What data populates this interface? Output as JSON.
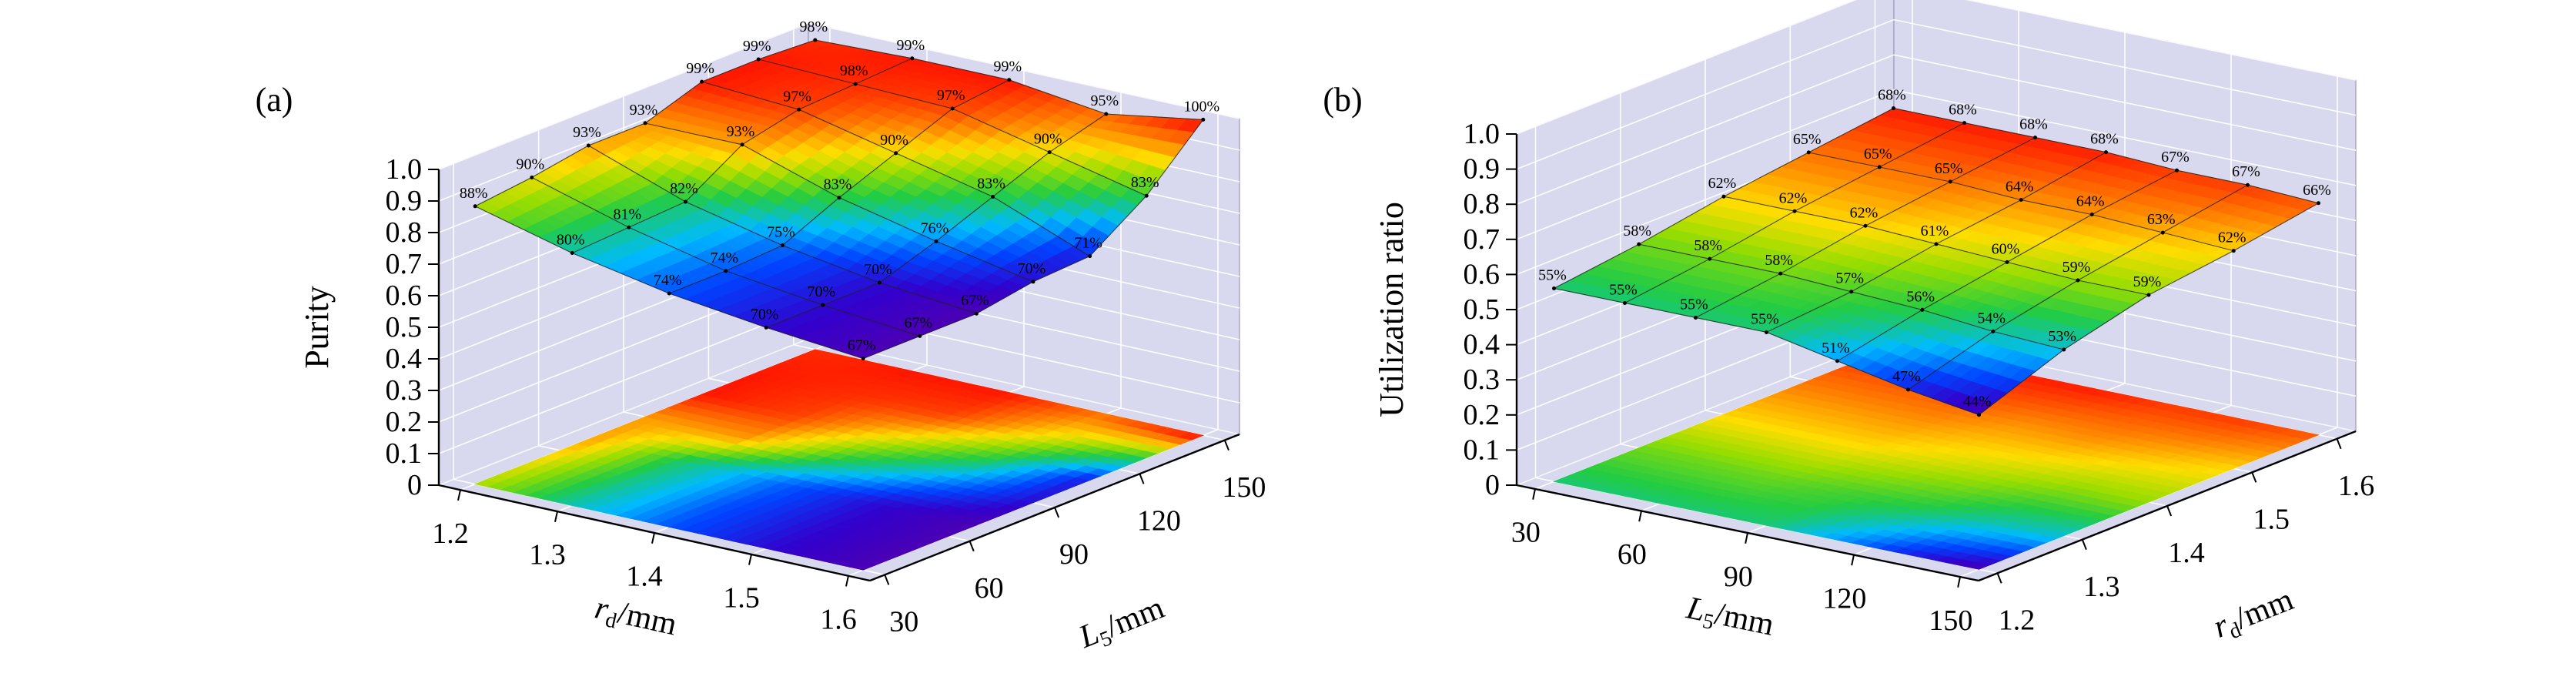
{
  "figure": {
    "background": "#ffffff",
    "panel_labels": [
      "(a)",
      "(b)"
    ],
    "wall_color": "#d8d9ee",
    "wall_grid_color": "#ffffff"
  },
  "chart_data": [
    {
      "type": "surface",
      "panel_label": "(a)",
      "zlabel": "Purity",
      "axis1": {
        "label": "r_d/mm",
        "label_main": "r",
        "label_sub": "d",
        "label_unit": "/mm",
        "ticks": [
          1.2,
          1.3,
          1.4,
          1.5,
          1.6
        ],
        "tick_labels": [
          "1.2",
          "1.3",
          "1.4",
          "1.5",
          "1.6"
        ]
      },
      "axis2": {
        "label": "L_5/mm",
        "label_main": "L",
        "label_sub": "5",
        "label_unit": "/mm",
        "ticks": [
          30,
          60,
          90,
          120,
          150
        ],
        "tick_labels": [
          "30",
          "60",
          "90",
          "120",
          "150"
        ]
      },
      "zaxis": {
        "label": "Purity",
        "lim": [
          0,
          1.0
        ],
        "tick_labels": [
          "0",
          "0.1",
          "0.2",
          "0.3",
          "0.4",
          "0.5",
          "0.6",
          "0.7",
          "0.8",
          "0.9",
          "1.0"
        ]
      },
      "axis1_points": [
        1.2,
        1.3,
        1.4,
        1.5,
        1.6
      ],
      "axis2_points": [
        30,
        50,
        70,
        90,
        110,
        130,
        150
      ],
      "values_percent": [
        [
          88,
          80,
          74,
          70,
          67
        ],
        [
          90,
          81,
          74,
          70,
          67
        ],
        [
          93,
          82,
          75,
          70,
          67
        ],
        [
          93,
          93,
          83,
          76,
          70
        ],
        [
          99,
          97,
          90,
          83,
          71
        ],
        [
          99,
          98,
          97,
          90,
          83
        ],
        [
          98,
          99,
          99,
          95,
          100
        ]
      ],
      "point_label_suffix": "%",
      "colormap": "rainbow",
      "colormap_range": [
        66,
        100
      ]
    },
    {
      "type": "surface",
      "panel_label": "(b)",
      "zlabel": "Utilization ratio",
      "axis1": {
        "label": "L_5/mm",
        "label_main": "L",
        "label_sub": "5",
        "label_unit": "/mm",
        "ticks": [
          30,
          60,
          90,
          120,
          150
        ],
        "tick_labels": [
          "30",
          "60",
          "90",
          "120",
          "150"
        ]
      },
      "axis2": {
        "label": "r_d/mm",
        "label_main": "r",
        "label_sub": "d",
        "label_unit": "/mm",
        "ticks": [
          1.2,
          1.3,
          1.4,
          1.5,
          1.6
        ],
        "tick_labels": [
          "1.2",
          "1.3",
          "1.4",
          "1.5",
          "1.6"
        ]
      },
      "zaxis": {
        "label": "Utilization ratio",
        "lim": [
          0,
          1.0
        ],
        "tick_labels": [
          "0",
          "0.1",
          "0.2",
          "0.3",
          "0.4",
          "0.5",
          "0.6",
          "0.7",
          "0.8",
          "0.9",
          "1.0"
        ]
      },
      "axis1_points": [
        30,
        50,
        70,
        90,
        110,
        130,
        150
      ],
      "axis2_points": [
        1.2,
        1.3,
        1.4,
        1.5,
        1.6
      ],
      "values_percent": [
        [
          55,
          55,
          55,
          55,
          51,
          47,
          44
        ],
        [
          58,
          58,
          58,
          57,
          56,
          54,
          53
        ],
        [
          62,
          62,
          62,
          61,
          60,
          59,
          59
        ],
        [
          65,
          65,
          65,
          64,
          64,
          63,
          62
        ],
        [
          68,
          68,
          68,
          68,
          67,
          67,
          66
        ]
      ],
      "point_label_suffix": "%",
      "colormap": "rainbow",
      "colormap_range": [
        43,
        69
      ]
    }
  ]
}
